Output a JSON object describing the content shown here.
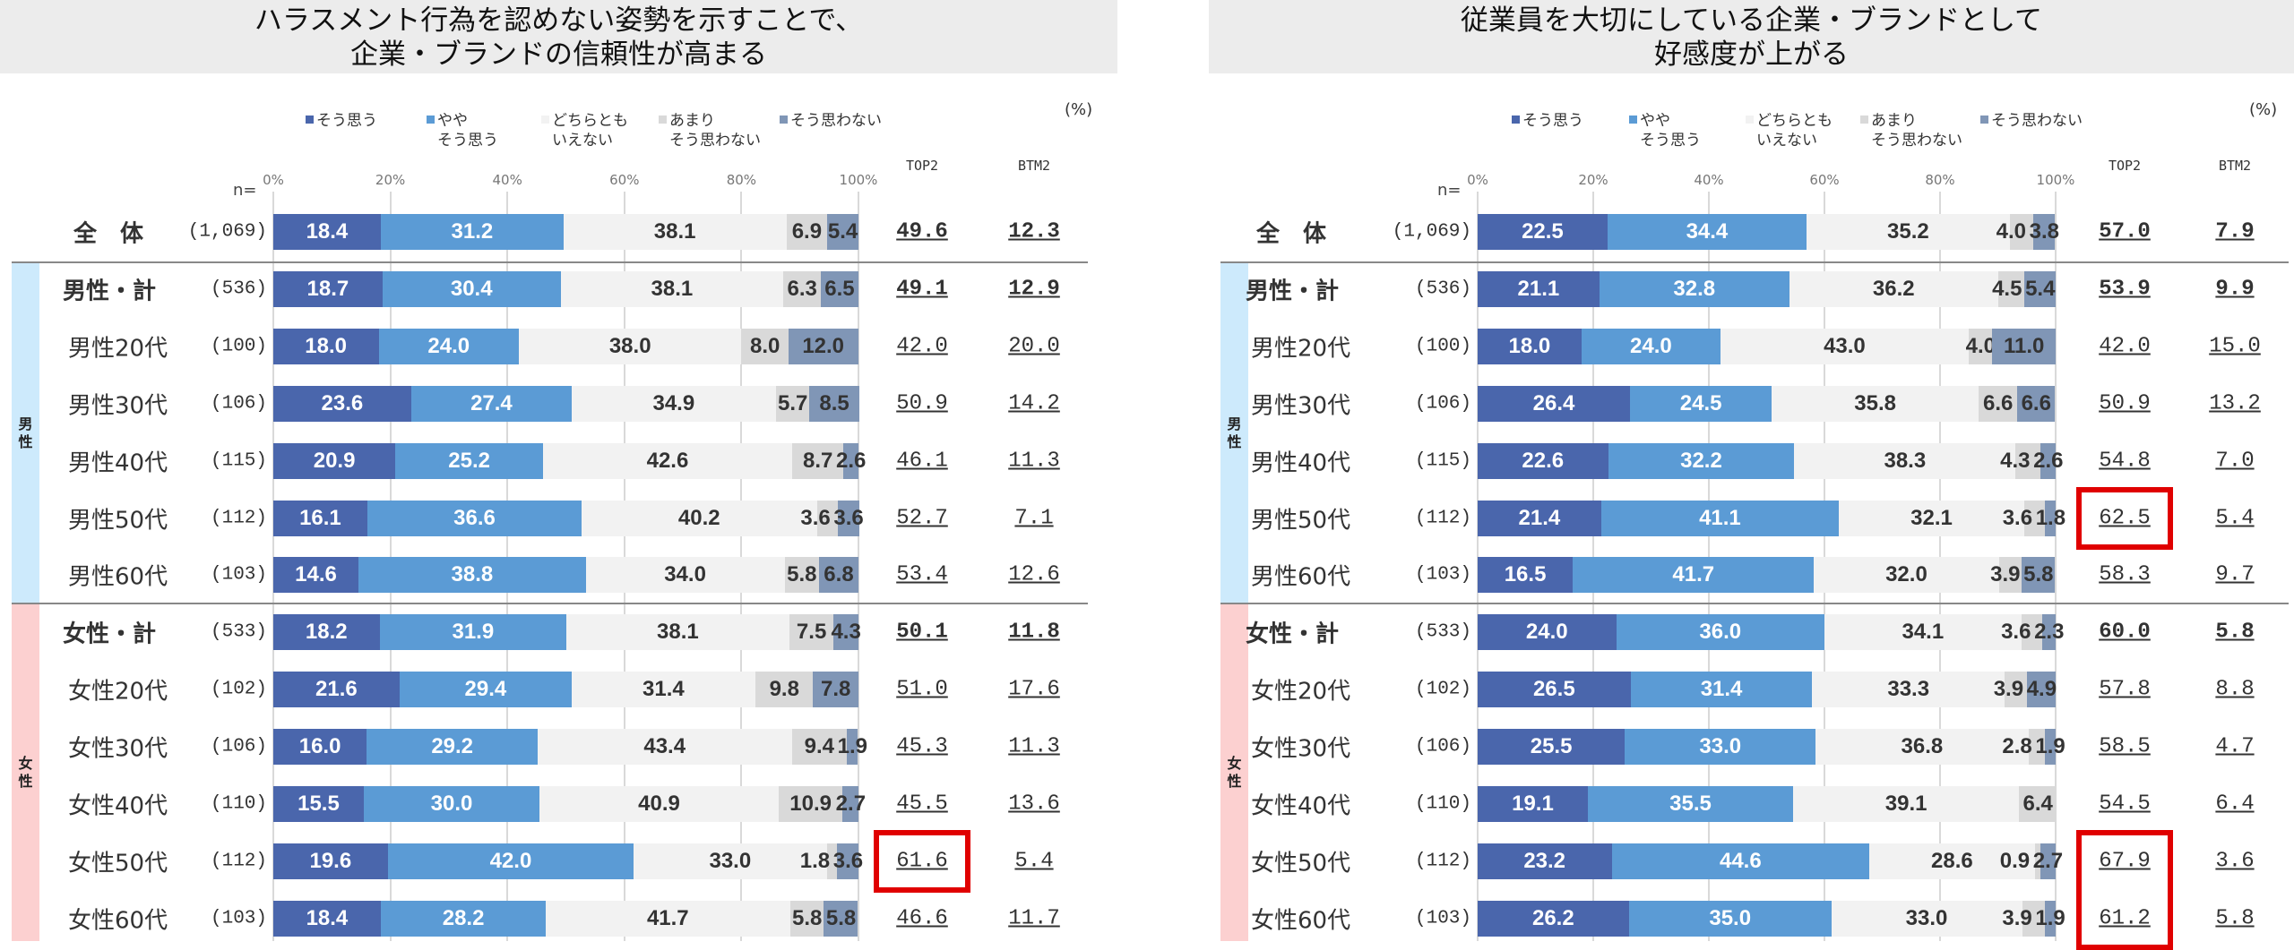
{
  "colors": {
    "soo_omou": "#4a66ac",
    "yaya": "#5b9bd5",
    "dochira": "#f2f2f2",
    "amari": "#d9d9d9",
    "omowanai": "#8096b6",
    "male_band": "#cdeafc",
    "female_band": "#fcd0d0",
    "highlight": "#e00000"
  },
  "legend": [
    "そう思う",
    "やや\nそう思う",
    "どちらとも\nいえない",
    "あまり\nそう思わない",
    "そう思わない"
  ],
  "unit": "(%)",
  "n_label": "n=",
  "ticks": [
    "0%",
    "20%",
    "40%",
    "60%",
    "80%",
    "100%"
  ],
  "top2_label": "TOP2",
  "btm2_label": "BTM2",
  "groups": {
    "male": "男\n性",
    "female": "女\n性"
  },
  "chart_data": [
    {
      "type": "bar",
      "stacked": true,
      "orientation": "horizontal",
      "title": "ハラスメント行為を認めない姿勢を示すことで、\n企業・ブランドの信頼性が高まる",
      "xlim": [
        0,
        100
      ],
      "grid": true,
      "legend_position": "top",
      "series_names": [
        "そう思う",
        "やや そう思う",
        "どちらとも いえない",
        "あまり そう思わない",
        "そう思わない"
      ],
      "rows": [
        {
          "label": "全　体",
          "n": "(1,069)",
          "values": [
            18.4,
            31.2,
            38.1,
            6.9,
            5.4
          ],
          "top2": "49.6",
          "btm2": "12.3"
        },
        {
          "label": "男性・計",
          "n": "(536)",
          "values": [
            18.7,
            30.4,
            38.1,
            6.3,
            6.5
          ],
          "top2": "49.1",
          "btm2": "12.9"
        },
        {
          "label": "男性20代",
          "n": "(100)",
          "values": [
            18.0,
            24.0,
            38.0,
            8.0,
            12.0
          ],
          "top2": "42.0",
          "btm2": "20.0"
        },
        {
          "label": "男性30代",
          "n": "(106)",
          "values": [
            23.6,
            27.4,
            34.9,
            5.7,
            8.5
          ],
          "top2": "50.9",
          "btm2": "14.2"
        },
        {
          "label": "男性40代",
          "n": "(115)",
          "values": [
            20.9,
            25.2,
            42.6,
            8.7,
            2.6
          ],
          "top2": "46.1",
          "btm2": "11.3"
        },
        {
          "label": "男性50代",
          "n": "(112)",
          "values": [
            16.1,
            36.6,
            40.2,
            3.6,
            3.6
          ],
          "top2": "52.7",
          "btm2": "7.1"
        },
        {
          "label": "男性60代",
          "n": "(103)",
          "values": [
            14.6,
            38.8,
            34.0,
            5.8,
            6.8
          ],
          "top2": "53.4",
          "btm2": "12.6"
        },
        {
          "label": "女性・計",
          "n": "(533)",
          "values": [
            18.2,
            31.9,
            38.1,
            7.5,
            4.3
          ],
          "top2": "50.1",
          "btm2": "11.8"
        },
        {
          "label": "女性20代",
          "n": "(102)",
          "values": [
            21.6,
            29.4,
            31.4,
            9.8,
            7.8
          ],
          "top2": "51.0",
          "btm2": "17.6"
        },
        {
          "label": "女性30代",
          "n": "(106)",
          "values": [
            16.0,
            29.2,
            43.4,
            9.4,
            1.9
          ],
          "top2": "45.3",
          "btm2": "11.3"
        },
        {
          "label": "女性40代",
          "n": "(110)",
          "values": [
            15.5,
            30.0,
            40.9,
            10.9,
            2.7
          ],
          "top2": "45.5",
          "btm2": "13.6"
        },
        {
          "label": "女性50代",
          "n": "(112)",
          "values": [
            19.6,
            42.0,
            33.0,
            1.8,
            3.6
          ],
          "top2": "61.6",
          "btm2": "5.4",
          "highlight_top2": true
        },
        {
          "label": "女性60代",
          "n": "(103)",
          "values": [
            18.4,
            28.2,
            41.7,
            5.8,
            5.8
          ],
          "top2": "46.6",
          "btm2": "11.7"
        }
      ]
    },
    {
      "type": "bar",
      "stacked": true,
      "orientation": "horizontal",
      "title": "従業員を大切にしている企業・ブランドとして\n好感度が上がる",
      "xlim": [
        0,
        100
      ],
      "grid": true,
      "legend_position": "top",
      "series_names": [
        "そう思う",
        "やや そう思う",
        "どちらとも いえない",
        "あまり そう思わない",
        "そう思わない"
      ],
      "rows": [
        {
          "label": "全　体",
          "n": "(1,069)",
          "values": [
            22.5,
            34.4,
            35.2,
            4.0,
            3.8
          ],
          "top2": "57.0",
          "btm2": "7.9"
        },
        {
          "label": "男性・計",
          "n": "(536)",
          "values": [
            21.1,
            32.8,
            36.2,
            4.5,
            5.4
          ],
          "top2": "53.9",
          "btm2": "9.9"
        },
        {
          "label": "男性20代",
          "n": "(100)",
          "values": [
            18.0,
            24.0,
            43.0,
            4.0,
            11.0
          ],
          "top2": "42.0",
          "btm2": "15.0"
        },
        {
          "label": "男性30代",
          "n": "(106)",
          "values": [
            26.4,
            24.5,
            35.8,
            6.6,
            6.6
          ],
          "top2": "50.9",
          "btm2": "13.2"
        },
        {
          "label": "男性40代",
          "n": "(115)",
          "values": [
            22.6,
            32.2,
            38.3,
            4.3,
            2.6
          ],
          "top2": "54.8",
          "btm2": "7.0"
        },
        {
          "label": "男性50代",
          "n": "(112)",
          "values": [
            21.4,
            41.1,
            32.1,
            3.6,
            1.8
          ],
          "top2": "62.5",
          "btm2": "5.4",
          "highlight_top2": true
        },
        {
          "label": "男性60代",
          "n": "(103)",
          "values": [
            16.5,
            41.7,
            32.0,
            3.9,
            5.8
          ],
          "top2": "58.3",
          "btm2": "9.7"
        },
        {
          "label": "女性・計",
          "n": "(533)",
          "values": [
            24.0,
            36.0,
            34.1,
            3.6,
            2.3
          ],
          "top2": "60.0",
          "btm2": "5.8"
        },
        {
          "label": "女性20代",
          "n": "(102)",
          "values": [
            26.5,
            31.4,
            33.3,
            3.9,
            4.9
          ],
          "top2": "57.8",
          "btm2": "8.8"
        },
        {
          "label": "女性30代",
          "n": "(106)",
          "values": [
            25.5,
            33.0,
            36.8,
            2.8,
            1.9
          ],
          "top2": "58.5",
          "btm2": "4.7"
        },
        {
          "label": "女性40代",
          "n": "(110)",
          "values": [
            19.1,
            35.5,
            39.1,
            6.4,
            0
          ],
          "top2": "54.5",
          "btm2": "6.4"
        },
        {
          "label": "女性50代",
          "n": "(112)",
          "values": [
            23.2,
            44.6,
            28.6,
            0.9,
            2.7
          ],
          "top2": "67.9",
          "btm2": "3.6",
          "highlight_top2": true
        },
        {
          "label": "女性60代",
          "n": "(103)",
          "values": [
            26.2,
            35.0,
            33.0,
            3.9,
            1.9
          ],
          "top2": "61.2",
          "btm2": "5.8",
          "highlight_top2": true
        }
      ]
    }
  ]
}
